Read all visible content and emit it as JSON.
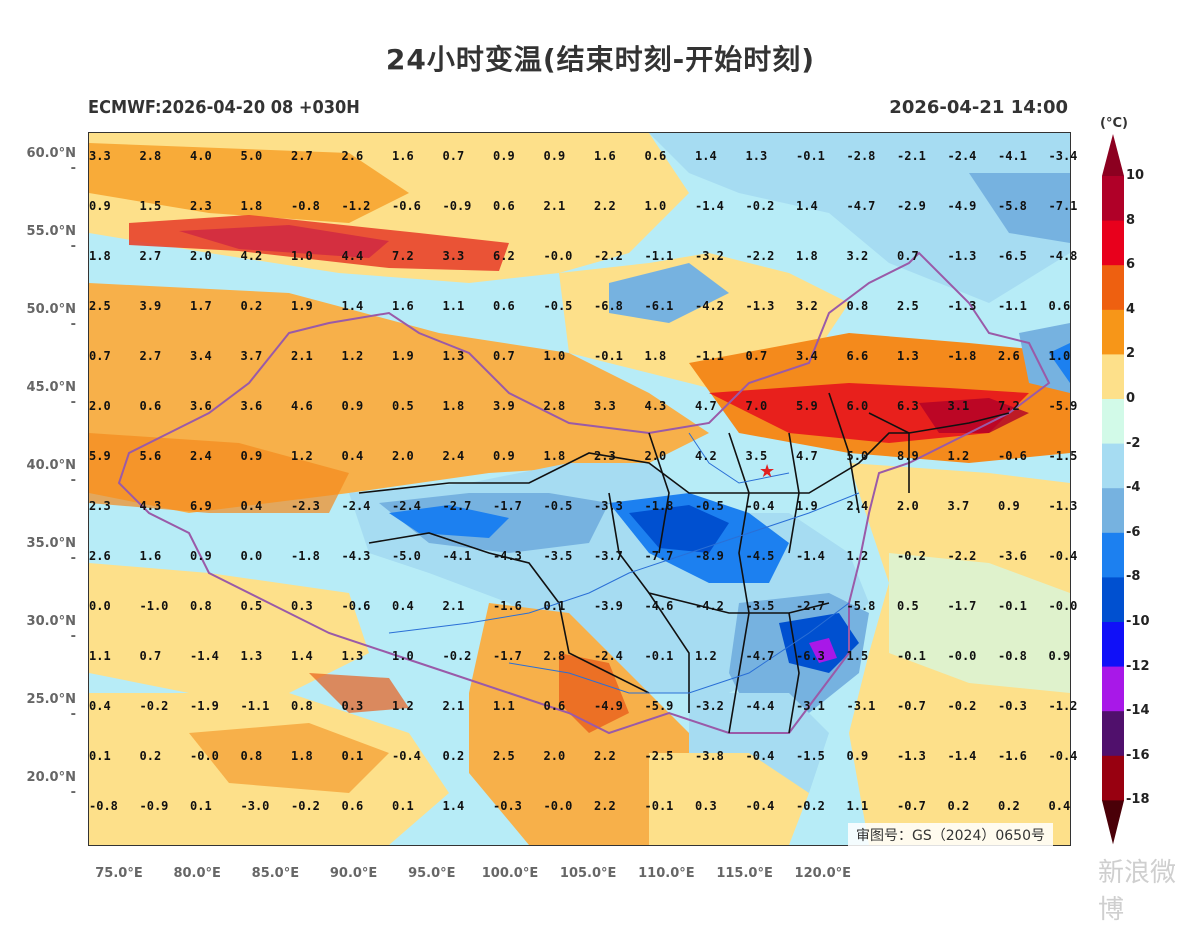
{
  "title": "24小时变温(结束时刻-开始时刻)",
  "run_label": "ECMWF:2026-04-20 08 +030H",
  "valid_time": "2026-04-21 14:00",
  "lat_ticks": [
    "60.0°N",
    "55.0°N",
    "50.0°N",
    "45.0°N",
    "40.0°N",
    "35.0°N",
    "30.0°N",
    "25.0°N",
    "20.0°N"
  ],
  "lon_ticks": [
    "75.0°E",
    "80.0°E",
    "85.0°E",
    "90.0°E",
    "95.0°E",
    "100.0°E",
    "105.0°E",
    "110.0°E",
    "115.0°E",
    "120.0°E"
  ],
  "colorbar": {
    "unit": "(°C)",
    "labels": [
      "10",
      "8",
      "6",
      "4",
      "2",
      "0",
      "-2",
      "-4",
      "-6",
      "-8",
      "-10",
      "-12",
      "-14",
      "-16",
      "-18"
    ],
    "colors": [
      "#b00028",
      "#e8001c",
      "#ee6010",
      "#f79618",
      "#fde08a",
      "#d2fae8",
      "#a6dcf2",
      "#76b2e0",
      "#1c80f0",
      "#0050d0",
      "#1010f8",
      "#a818e8",
      "#50106c",
      "#980010"
    ],
    "top_color": "#8c0020",
    "bottom_color": "#4a0008"
  },
  "chart_data": {
    "type": "heatmap",
    "description_units": "°C",
    "grid_values": [
      [
        "3.3",
        "2.8",
        "4.0",
        "5.0",
        "2.7",
        "2.6",
        "1.6",
        "0.7",
        "0.9",
        "0.9",
        "1.6",
        "0.6",
        "1.4",
        "1.3",
        "-0.1",
        "-2.8",
        "-2.1",
        "-2.4",
        "-4.1",
        "-3.4"
      ],
      [
        "0.9",
        "1.5",
        "2.3",
        "1.8",
        "-0.8",
        "-1.2",
        "-0.6",
        "-0.9",
        "0.6",
        "2.1",
        "2.2",
        "1.0",
        "-1.4",
        "-0.2",
        "1.4",
        "-4.7",
        "-2.9",
        "-4.9",
        "-5.8",
        "-7.1"
      ],
      [
        "1.8",
        "2.7",
        "2.0",
        "4.2",
        "1.0",
        "4.4",
        "7.2",
        "3.3",
        "6.2",
        "-0.0",
        "-2.2",
        "-1.1",
        "-3.2",
        "-2.2",
        "1.8",
        "3.2",
        "0.7",
        "-1.3",
        "-6.5",
        "-4.8"
      ],
      [
        "2.5",
        "3.9",
        "1.7",
        "0.2",
        "1.9",
        "1.4",
        "1.6",
        "1.1",
        "0.6",
        "-0.5",
        "-6.8",
        "-6.1",
        "-4.2",
        "-1.3",
        "3.2",
        "0.8",
        "2.5",
        "-1.3",
        "-1.1",
        "0.6"
      ],
      [
        "0.7",
        "2.7",
        "3.4",
        "3.7",
        "2.1",
        "1.2",
        "1.9",
        "1.3",
        "0.7",
        "1.0",
        "-0.1",
        "1.8",
        "-1.1",
        "0.7",
        "3.4",
        "6.6",
        "1.3",
        "-1.8",
        "2.6",
        "1.0"
      ],
      [
        "2.0",
        "0.6",
        "3.6",
        "3.6",
        "4.6",
        "0.9",
        "0.5",
        "1.8",
        "3.9",
        "2.8",
        "3.3",
        "4.3",
        "4.7",
        "7.0",
        "5.9",
        "6.0",
        "6.3",
        "3.1",
        "7.2",
        "-5.9"
      ],
      [
        "5.9",
        "5.6",
        "2.4",
        "0.9",
        "1.2",
        "0.4",
        "2.0",
        "2.4",
        "0.9",
        "1.8",
        "2.3",
        "2.0",
        "4.2",
        "3.5",
        "4.7",
        "5.0",
        "8.9",
        "1.2",
        "-0.6",
        "-1.5"
      ],
      [
        "2.3",
        "4.3",
        "6.9",
        "0.4",
        "-2.3",
        "-2.4",
        "-2.4",
        "-2.7",
        "-1.7",
        "-0.5",
        "-3.3",
        "-1.8",
        "-0.5",
        "-0.4",
        "1.9",
        "2.4",
        "2.0",
        "3.7",
        "0.9",
        "-1.3"
      ],
      [
        "2.6",
        "1.6",
        "0.9",
        "0.0",
        "-1.8",
        "-4.3",
        "-5.0",
        "-4.1",
        "-4.3",
        "-3.5",
        "-3.7",
        "-7.7",
        "-8.9",
        "-4.5",
        "-1.4",
        "1.2",
        "-0.2",
        "-2.2",
        "-3.6",
        "-0.4"
      ],
      [
        "0.0",
        "-1.0",
        "0.8",
        "0.5",
        "0.3",
        "-0.6",
        "0.4",
        "2.1",
        "-1.6",
        "0.1",
        "-3.9",
        "-4.6",
        "-4.2",
        "-3.5",
        "-2.7",
        "-5.8",
        "0.5",
        "-1.7",
        "-0.1",
        "-0.0"
      ],
      [
        "1.1",
        "0.7",
        "-1.4",
        "1.3",
        "1.4",
        "1.3",
        "1.0",
        "-0.2",
        "-1.7",
        "2.8",
        "-2.4",
        "-0.1",
        "1.2",
        "-4.7",
        "-6.3",
        "1.5",
        "-0.1",
        "-0.0",
        "-0.8",
        "0.9"
      ],
      [
        "0.4",
        "-0.2",
        "-1.9",
        "-1.1",
        "0.8",
        "0.3",
        "1.2",
        "2.1",
        "1.1",
        "0.6",
        "-4.9",
        "-5.9",
        "-3.2",
        "-4.4",
        "-3.1",
        "-3.1",
        "-0.7",
        "-0.2",
        "-0.3",
        "-1.2"
      ],
      [
        "0.1",
        "0.2",
        "-0.0",
        "0.8",
        "1.8",
        "0.1",
        "-0.4",
        "0.2",
        "2.5",
        "2.0",
        "2.2",
        "-2.5",
        "-3.8",
        "-0.4",
        "-1.5",
        "0.9",
        "-1.3",
        "-1.4",
        "-1.6",
        "-0.4"
      ],
      [
        "-0.8",
        "-0.9",
        "0.1",
        "-3.0",
        "-0.2",
        "0.6",
        "0.1",
        "1.4",
        "-0.3",
        "-0.0",
        "2.2",
        "-0.1",
        "0.3",
        "-0.4",
        "-0.2",
        "1.1",
        "-0.7",
        "0.2",
        "0.2",
        "0.4"
      ]
    ],
    "xlim": [
      72.5,
      135
    ],
    "ylim": [
      15.5,
      61
    ],
    "grid": false
  },
  "credit": "审图号：GS（2024）0650号",
  "watermark": "新浪微博"
}
